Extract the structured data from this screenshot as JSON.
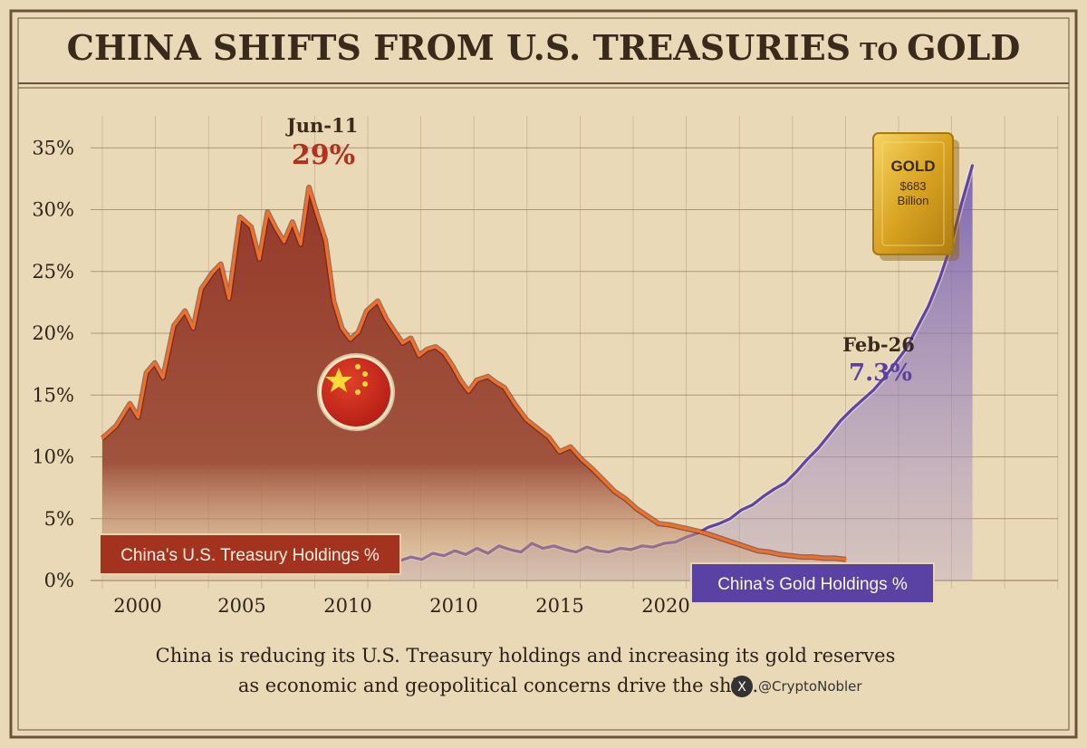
{
  "title_main": "CHINA SHIFTS FROM U.S. TREASURIES",
  "title_small": "TO",
  "title_end": "GOLD",
  "caption_line1": "China is reducing its U.S. Treasury holdings and increasing its gold reserves",
  "caption_line2": "as economic and geopolitical concerns drive the shift.",
  "handle": "@CryptoNobler",
  "gold_bar": {
    "label": "GOLD",
    "value": "$683",
    "unit": "Billion"
  },
  "colors": {
    "treasury": "#8f3526",
    "treasury_line": "#f0702a",
    "gold": "#5f43a8",
    "background": "#ead9b6"
  },
  "icons": [
    "china-flag-icon",
    "x-logo-icon",
    "gold-bar-icon"
  ],
  "chart_data": {
    "type": "area",
    "ylim": [
      0,
      35
    ],
    "y_ticks": [
      "0%",
      "5%",
      "10%",
      "15%",
      "20%",
      "25%",
      "30%",
      "35%"
    ],
    "y_tick_values": [
      0,
      5,
      10,
      15,
      20,
      25,
      30,
      35
    ],
    "x_tick_labels": [
      "2000",
      "2005",
      "2010",
      "2010",
      "2015",
      "2020"
    ],
    "grid": true,
    "series": [
      {
        "name": "China's U.S. Treasury Holdings %",
        "x": [
          0,
          0.5,
          1,
          1.3,
          1.6,
          1.9,
          2.2,
          2.6,
          3.0,
          3.3,
          3.6,
          4.0,
          4.3,
          4.6,
          5.0,
          5.4,
          5.7,
          6.0,
          6.3,
          6.6,
          6.9,
          7.2,
          7.5,
          7.8,
          8.1,
          8.4,
          8.7,
          9.0,
          9.3,
          9.6,
          10.0,
          10.3,
          10.6,
          10.9,
          11.2,
          11.5,
          11.8,
          12.1,
          12.4,
          12.7,
          13.0,
          13.3,
          13.6,
          14.0,
          14.3,
          14.6,
          15.0,
          15.4,
          15.8,
          16.2,
          16.6,
          17.0,
          17.4,
          17.8,
          18.2,
          18.6,
          19.0,
          19.4,
          19.8,
          20.2,
          20.6,
          21.0,
          21.4,
          21.8,
          22.2,
          22.6,
          23.0,
          23.4,
          23.8,
          24.2,
          24.6,
          25.0,
          25.4,
          25.8,
          26.2,
          26.6,
          27.0
        ],
        "values": [
          11.5,
          12.5,
          14.3,
          13.2,
          16.8,
          17.6,
          16.4,
          20.6,
          21.8,
          20.4,
          23.6,
          24.9,
          25.6,
          22.8,
          29.4,
          28.6,
          26.0,
          29.8,
          28.5,
          27.4,
          29.0,
          27.2,
          31.8,
          29.6,
          27.5,
          22.6,
          20.4,
          19.5,
          20.1,
          21.8,
          22.6,
          21.2,
          20.2,
          19.2,
          19.6,
          18.2,
          18.7,
          18.9,
          18.4,
          17.4,
          16.2,
          15.3,
          16.2,
          16.5,
          16.0,
          15.6,
          14.2,
          13.0,
          12.3,
          11.6,
          10.4,
          10.8,
          9.8,
          9.0,
          8.1,
          7.2,
          6.6,
          5.8,
          5.2,
          4.6,
          4.5,
          4.3,
          4.1,
          3.9,
          3.6,
          3.3,
          3.0,
          2.7,
          2.4,
          2.3,
          2.1,
          2.0,
          1.9,
          1.9,
          1.8,
          1.8,
          1.7
        ]
      },
      {
        "name": "China's Gold Holdings %",
        "x": [
          10.4,
          10.8,
          11.2,
          11.6,
          12.0,
          12.4,
          12.8,
          13.2,
          13.6,
          14.0,
          14.4,
          14.8,
          15.2,
          15.6,
          16.0,
          16.4,
          16.8,
          17.2,
          17.6,
          18.0,
          18.4,
          18.8,
          19.2,
          19.6,
          20.0,
          20.4,
          20.8,
          21.2,
          21.6,
          22.0,
          22.4,
          22.8,
          23.2,
          23.6,
          24.0,
          24.4,
          24.8,
          25.2,
          25.6,
          26.0,
          26.4,
          26.8,
          27.2,
          27.6,
          28.0,
          28.4,
          28.8,
          29.2,
          29.6,
          30.0,
          30.4,
          30.8,
          31.2,
          31.6
        ],
        "values": [
          1.3,
          1.6,
          1.9,
          1.7,
          2.2,
          2.0,
          2.4,
          2.1,
          2.6,
          2.2,
          2.8,
          2.5,
          2.3,
          3.0,
          2.6,
          2.8,
          2.5,
          2.3,
          2.7,
          2.4,
          2.3,
          2.6,
          2.5,
          2.8,
          2.7,
          3.0,
          3.1,
          3.5,
          3.8,
          4.3,
          4.6,
          5.0,
          5.7,
          6.1,
          6.8,
          7.4,
          7.9,
          8.8,
          9.8,
          10.7,
          11.8,
          12.9,
          13.8,
          14.6,
          15.4,
          16.4,
          17.6,
          18.8,
          20.5,
          22.2,
          24.4,
          27.0,
          30.5,
          33.6
        ]
      }
    ],
    "annotations": [
      {
        "label": "Jun-11",
        "value_label": "29%",
        "series": 0
      },
      {
        "label": "Feb-26",
        "value_label": "7.3%",
        "series": 1
      }
    ]
  }
}
